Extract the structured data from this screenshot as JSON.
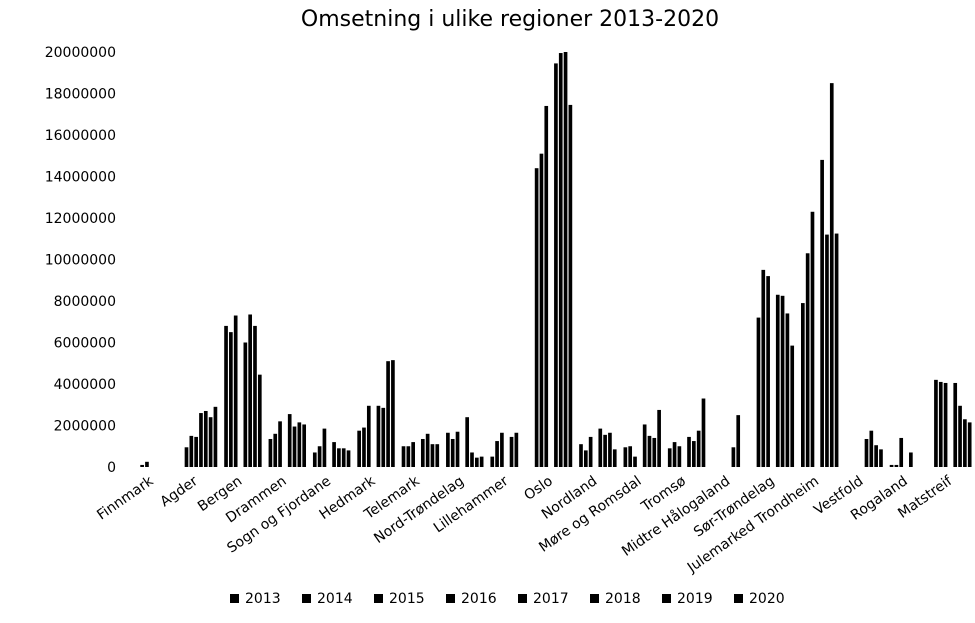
{
  "chart_data": {
    "type": "bar",
    "title": "Omsetning i ulike regioner 2013-2020",
    "xlabel": "",
    "ylabel": "",
    "ylim": [
      0,
      20000000
    ],
    "yticks": [
      0,
      2000000,
      4000000,
      6000000,
      8000000,
      10000000,
      12000000,
      14000000,
      16000000,
      18000000,
      20000000
    ],
    "ytick_labels": [
      "0",
      "2000000",
      "4000000",
      "6000000",
      "8000000",
      "10000000",
      "12000000",
      "14000000",
      "16000000",
      "18000000",
      "20000000"
    ],
    "grid": false,
    "legend_position": "bottom",
    "bar_color": "#000000",
    "categories": [
      "Finnmark",
      "Agder",
      "Bergen",
      "Drammen",
      "Sogn og Fjordane",
      "Hedmark",
      "Telemark",
      "Nord-Trøndelag",
      "Lillehammer",
      "Oslo",
      "Nordland",
      "Møre og Romsdal",
      "Tromsø",
      "Midtre Hålogaland",
      "Sør-Trøndelag",
      "Julemarked Trondheim",
      "Vestfold",
      "Rogaland",
      "Matstreif"
    ],
    "series": [
      {
        "name": "2013",
        "values": [
          0,
          0,
          6800000,
          1350000,
          700000,
          1750000,
          1000000,
          1650000,
          500000,
          14400000,
          1100000,
          950000,
          900000,
          0,
          7200000,
          7900000,
          0,
          100000,
          4200000
        ]
      },
      {
        "name": "2014",
        "values": [
          100000,
          950000,
          6500000,
          1600000,
          1000000,
          1900000,
          1000000,
          1350000,
          1250000,
          15100000,
          800000,
          1000000,
          1200000,
          0,
          9500000,
          10300000,
          0,
          100000,
          4100000
        ]
      },
      {
        "name": "2015",
        "values": [
          250000,
          1500000,
          7300000,
          2200000,
          1850000,
          2950000,
          1200000,
          1700000,
          1650000,
          17400000,
          1450000,
          500000,
          1000000,
          0,
          9200000,
          12300000,
          0,
          1400000,
          4050000
        ]
      },
      {
        "name": "2016",
        "values": [
          0,
          1450000,
          0,
          0,
          0,
          0,
          0,
          0,
          0,
          0,
          0,
          0,
          0,
          0,
          0,
          0,
          0,
          0,
          0
        ]
      },
      {
        "name": "2017",
        "values": [
          0,
          2600000,
          6000000,
          2550000,
          1200000,
          2950000,
          1350000,
          2400000,
          1450000,
          19450000,
          1850000,
          2050000,
          1450000,
          950000,
          8300000,
          14800000,
          1350000,
          700000,
          4050000
        ]
      },
      {
        "name": "2018",
        "values": [
          0,
          2700000,
          7350000,
          1950000,
          900000,
          2850000,
          1600000,
          700000,
          1650000,
          19950000,
          1550000,
          1500000,
          1250000,
          2500000,
          8250000,
          11200000,
          1750000,
          0,
          2950000
        ]
      },
      {
        "name": "2019",
        "values": [
          0,
          2400000,
          6800000,
          2150000,
          900000,
          5100000,
          1100000,
          450000,
          0,
          20000000,
          1650000,
          1400000,
          1750000,
          0,
          7400000,
          18500000,
          1050000,
          0,
          2300000
        ]
      },
      {
        "name": "2020",
        "values": [
          0,
          2900000,
          4450000,
          2050000,
          800000,
          5150000,
          1100000,
          500000,
          0,
          17450000,
          850000,
          2750000,
          3300000,
          0,
          5850000,
          11250000,
          850000,
          0,
          2150000
        ]
      }
    ]
  }
}
